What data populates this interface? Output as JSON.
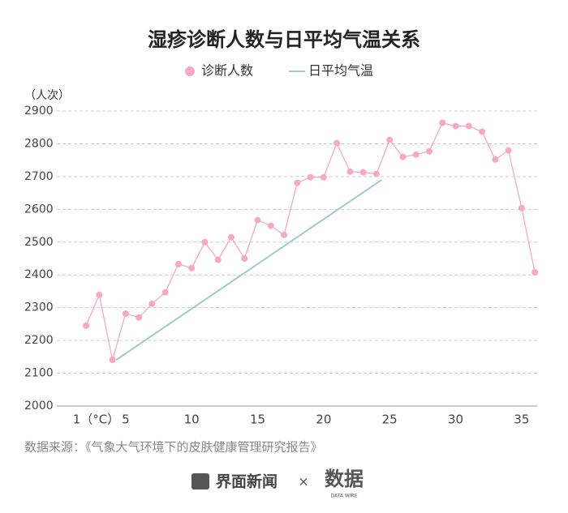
{
  "chart_data": {
    "type": "scatter-line",
    "title": "湿疹诊断人数与日平均气温关系",
    "y_label": "（人次）",
    "source": "数据来源：《气象大气环境下的皮肤健康管理研究报告》",
    "footer": {
      "brand": "界面新闻",
      "separator": "×",
      "logo": "数据",
      "logo_sub": "DATA WIRE"
    },
    "xlim": [
      0,
      36.3
    ],
    "xticks": [
      {
        "value": 1,
        "label": "1（°C）"
      },
      5,
      10,
      15,
      20,
      25,
      30,
      35
    ],
    "ylim": [
      2000,
      2900
    ],
    "yticks": [
      2000,
      2100,
      2200,
      2300,
      2400,
      2500,
      2600,
      2700,
      2800,
      2900
    ],
    "grid": true,
    "series": [
      {
        "name": "诊断人数",
        "color": "#f7a8c4",
        "style": "dots",
        "x": [
          2,
          3,
          4,
          5,
          6,
          7,
          8,
          9,
          10,
          11,
          12,
          13,
          14,
          15,
          16,
          17,
          18,
          19,
          20,
          21,
          22,
          23,
          24,
          25,
          26,
          27,
          28,
          29,
          30,
          31,
          32,
          33,
          34,
          35,
          36
        ],
        "values": [
          2245,
          2339,
          2141,
          2282,
          2270,
          2312,
          2347,
          2433,
          2421,
          2500,
          2446,
          2515,
          2450,
          2567,
          2550,
          2522,
          2681,
          2698,
          2698,
          2802,
          2715,
          2713,
          2708,
          2812,
          2760,
          2767,
          2777,
          2864,
          2854,
          2854,
          2837,
          2752,
          2780,
          2604,
          2408
        ]
      },
      {
        "name": "日平均气温",
        "color": "#9ecbcc",
        "style": "line",
        "x": [
          4.3,
          24.4
        ],
        "values": [
          2141,
          2690
        ]
      }
    ]
  }
}
